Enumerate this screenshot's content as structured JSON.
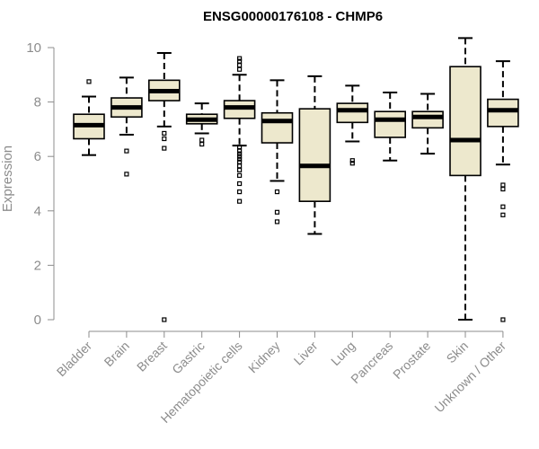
{
  "chart_data": {
    "type": "box",
    "title": "ENSG00000176108 - CHMP6",
    "xlabel": "",
    "ylabel": "Expression",
    "ylim": [
      0,
      10.5
    ],
    "yticks": [
      0,
      2,
      4,
      6,
      8,
      10
    ],
    "box_fill": "#ede8cd",
    "median_color": "#000000",
    "categories": [
      "Bladder",
      "Brain",
      "Breast",
      "Gastric",
      "Hematopoietic cells",
      "Kidney",
      "Liver",
      "Lung",
      "Pancreas",
      "Prostate",
      "Skin",
      "Unknown / Other"
    ],
    "boxes": [
      {
        "label": "Bladder",
        "whisker_low": 6.05,
        "q1": 6.65,
        "median": 7.15,
        "q3": 7.55,
        "whisker_high": 8.2,
        "outliers": [
          8.75
        ]
      },
      {
        "label": "Brain",
        "whisker_low": 6.8,
        "q1": 7.45,
        "median": 7.8,
        "q3": 8.15,
        "whisker_high": 8.9,
        "outliers": [
          6.2,
          5.35
        ]
      },
      {
        "label": "Breast",
        "whisker_low": 7.1,
        "q1": 8.05,
        "median": 8.4,
        "q3": 8.8,
        "whisker_high": 9.8,
        "outliers": [
          6.85,
          6.65,
          6.3,
          0.0
        ]
      },
      {
        "label": "Gastric",
        "whisker_low": 6.85,
        "q1": 7.2,
        "median": 7.35,
        "q3": 7.55,
        "whisker_high": 7.95,
        "outliers": [
          6.6,
          6.45
        ]
      },
      {
        "label": "Hematopoietic cells",
        "whisker_low": 6.4,
        "q1": 7.4,
        "median": 7.8,
        "q3": 8.05,
        "whisker_high": 9.0,
        "outliers": [
          9.6,
          9.5,
          9.35,
          9.2,
          6.35,
          6.2,
          6.1,
          6.0,
          5.9,
          5.8,
          5.65,
          5.5,
          5.3,
          5.0,
          4.7,
          4.35
        ]
      },
      {
        "label": "Kidney",
        "whisker_low": 5.1,
        "q1": 6.5,
        "median": 7.3,
        "q3": 7.6,
        "whisker_high": 8.8,
        "outliers": [
          4.7,
          3.95,
          3.6
        ]
      },
      {
        "label": "Liver",
        "whisker_low": 3.15,
        "q1": 4.35,
        "median": 5.65,
        "q3": 7.75,
        "whisker_high": 8.95,
        "outliers": []
      },
      {
        "label": "Lung",
        "whisker_low": 6.55,
        "q1": 7.25,
        "median": 7.7,
        "q3": 7.95,
        "whisker_high": 8.6,
        "outliers": [
          5.85,
          5.75
        ]
      },
      {
        "label": "Pancreas",
        "whisker_low": 5.85,
        "q1": 6.7,
        "median": 7.35,
        "q3": 7.65,
        "whisker_high": 8.35,
        "outliers": []
      },
      {
        "label": "Prostate",
        "whisker_low": 6.1,
        "q1": 7.05,
        "median": 7.45,
        "q3": 7.65,
        "whisker_high": 8.3,
        "outliers": []
      },
      {
        "label": "Skin",
        "whisker_low": 0.0,
        "q1": 5.3,
        "median": 6.6,
        "q3": 9.3,
        "whisker_high": 10.35,
        "outliers": []
      },
      {
        "label": "Unknown / Other",
        "whisker_low": 5.7,
        "q1": 7.1,
        "median": 7.7,
        "q3": 8.1,
        "whisker_high": 9.5,
        "outliers": [
          4.95,
          4.8,
          4.15,
          3.85,
          0.0
        ]
      }
    ]
  }
}
